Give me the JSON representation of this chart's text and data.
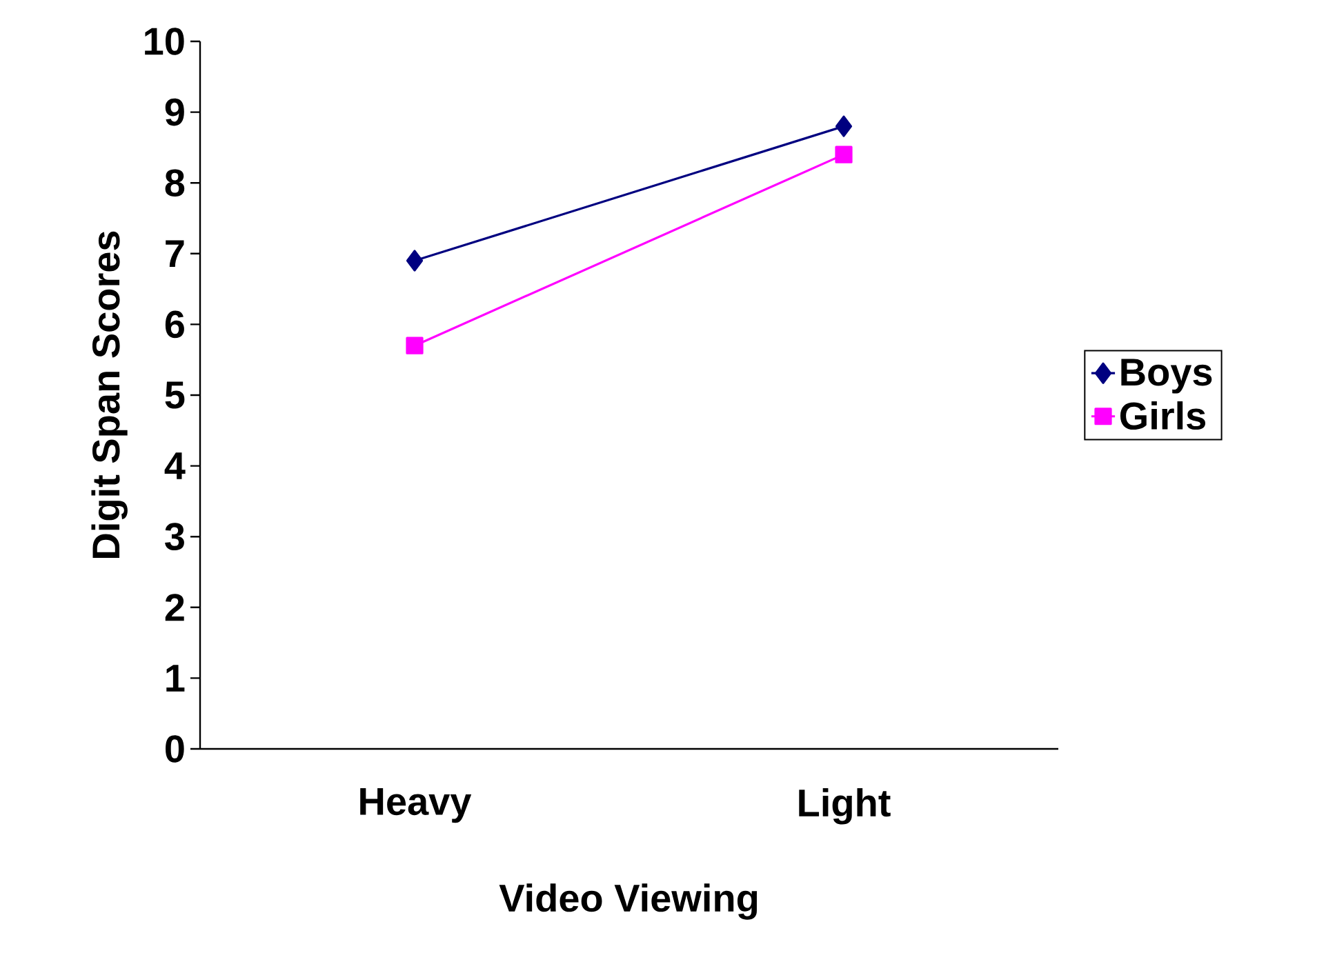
{
  "chart_data": {
    "type": "line",
    "xlabel": "Video Viewing",
    "ylabel": "Digit Span Scores",
    "categories": [
      "Heavy",
      "Light"
    ],
    "series": [
      {
        "name": "Boys",
        "color": "#000080",
        "marker": "diamond",
        "values": [
          6.9,
          8.8
        ]
      },
      {
        "name": "Girls",
        "color": "#ff00ff",
        "marker": "square",
        "values": [
          5.7,
          8.4
        ]
      }
    ],
    "ylim": [
      0,
      10
    ],
    "yticks": [
      0,
      1,
      2,
      3,
      4,
      5,
      6,
      7,
      8,
      9,
      10
    ],
    "legend": "right"
  }
}
